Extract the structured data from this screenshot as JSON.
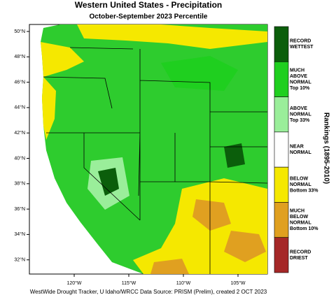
{
  "header": {
    "title": "Western United States - Precipitation",
    "subtitle": "October-September 2023 Percentile"
  },
  "map": {
    "lat_labels": [
      "50°N",
      "48°N",
      "46°N",
      "44°N",
      "42°N",
      "40°N",
      "38°N",
      "36°N",
      "34°N",
      "32°N"
    ],
    "lon_labels": [
      "120°W",
      "115°W",
      "110°W",
      "105°W"
    ]
  },
  "legend": {
    "title": "Rankings (1895-2010)",
    "items": [
      {
        "lines": [
          "RECORD",
          "WETTEST"
        ],
        "color": "#0b5e0b"
      },
      {
        "lines": [
          "MUCH",
          "ABOVE",
          "NORMAL",
          "Top 10%"
        ],
        "color": "#1fcf1f"
      },
      {
        "lines": [
          "ABOVE",
          "NORMAL",
          "Top 33%"
        ],
        "color": "#9aee9a"
      },
      {
        "lines": [
          "NEAR",
          "NORMAL"
        ],
        "color": "#ffffff"
      },
      {
        "lines": [
          "BELOW",
          "NORMAL",
          "Bottom 33%"
        ],
        "color": "#f5e800"
      },
      {
        "lines": [
          "MUCH",
          "BELOW",
          "NORMAL",
          "Bottom 10%"
        ],
        "color": "#e0a020"
      },
      {
        "lines": [
          "RECORD",
          "DRIEST"
        ],
        "color": "#a52828"
      }
    ]
  },
  "footer": "WestWide Drought Tracker, U Idaho/WRCC Data Source: PRISM (Prelim), created  2 OCT 2023"
}
